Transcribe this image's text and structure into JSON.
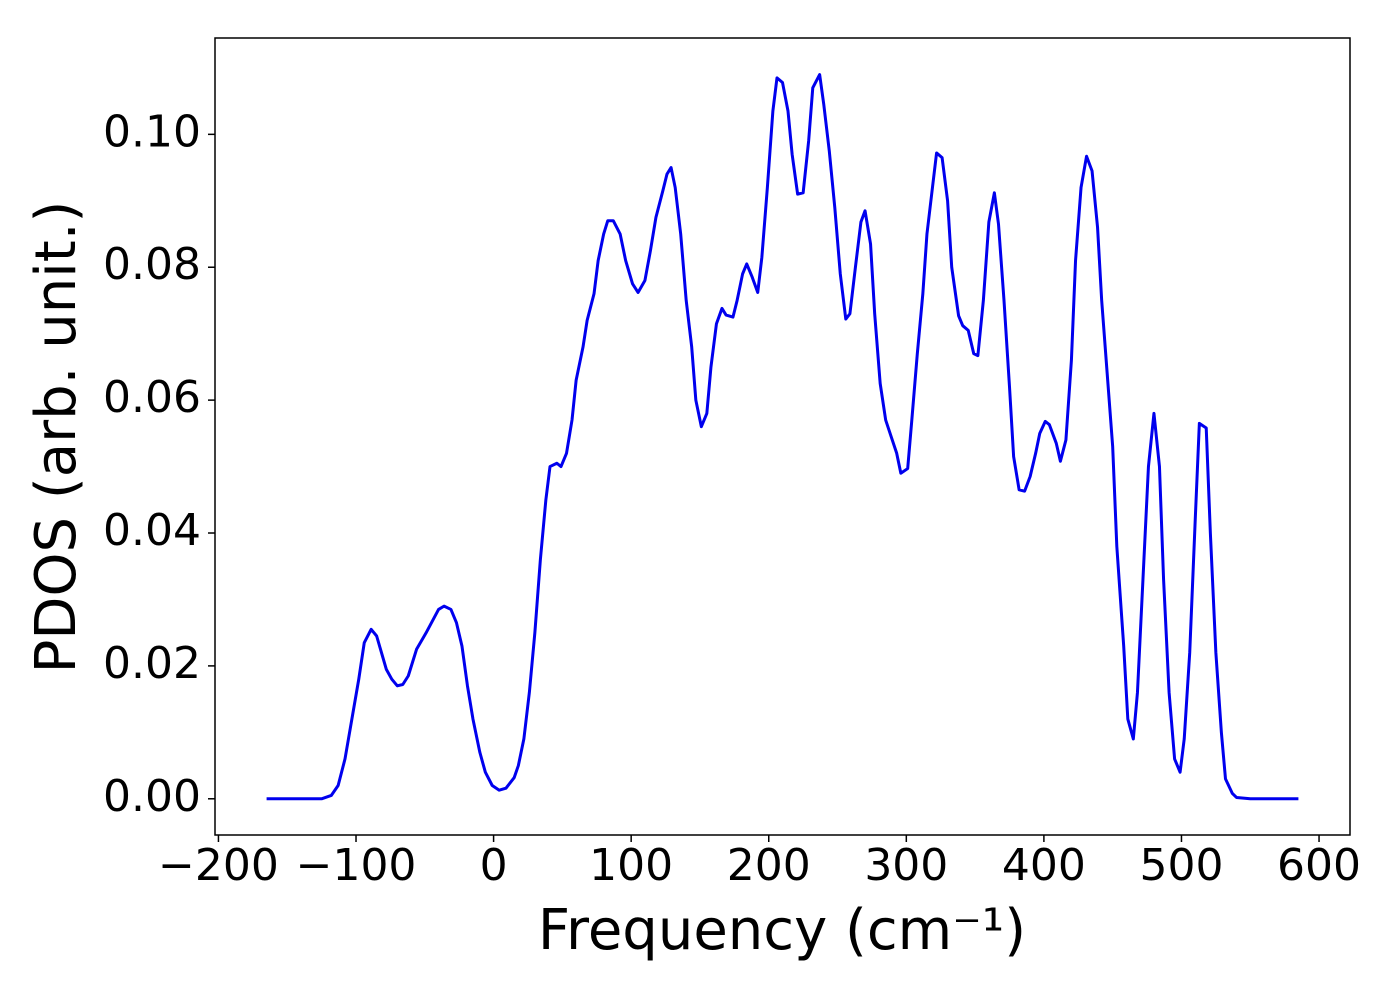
{
  "chart_data": {
    "type": "line",
    "xlabel": "Frequency (cm⁻¹)",
    "ylabel": "PDOS (arb. unit.)",
    "color": "#0000ee",
    "x": [
      -165,
      -150,
      -135,
      -125,
      -118,
      -113,
      -108,
      -103,
      -98,
      -94,
      -89,
      -85,
      -78,
      -74,
      -70,
      -66,
      -62,
      -56,
      -49,
      -40,
      -36,
      -31,
      -27,
      -23,
      -19,
      -15,
      -10,
      -6,
      -1,
      4,
      9,
      15,
      18,
      22,
      26,
      30,
      34,
      38,
      41,
      46,
      49,
      53,
      57,
      60,
      65,
      68,
      73,
      76,
      80,
      83,
      87,
      92,
      96,
      101,
      105,
      110,
      114,
      118,
      123,
      126,
      129,
      132,
      136,
      140,
      144,
      147,
      151,
      155,
      158,
      162,
      166,
      169,
      174,
      177,
      181,
      184,
      188,
      192,
      195,
      199,
      203,
      206,
      210,
      214,
      217,
      221,
      225,
      229,
      232,
      237,
      240,
      244,
      248,
      252,
      256,
      259,
      263,
      267,
      270,
      274,
      277,
      281,
      285,
      289,
      293,
      296,
      301,
      304,
      308,
      312,
      315,
      319,
      322,
      326,
      330,
      333,
      338,
      341,
      345,
      349,
      352,
      356,
      360,
      364,
      367,
      371,
      375,
      378,
      382,
      386,
      390,
      394,
      397,
      401,
      404,
      409,
      412,
      416,
      420,
      423,
      427,
      431,
      435,
      439,
      442,
      446,
      450,
      453,
      458,
      461,
      465,
      468,
      472,
      476,
      480,
      484,
      487,
      491,
      495,
      499,
      502,
      506,
      510,
      513,
      518,
      521,
      525,
      529,
      532,
      537,
      540,
      550,
      570,
      585
    ],
    "values": [
      0,
      0,
      0,
      0,
      0.0005,
      0.002,
      0.006,
      0.012,
      0.018,
      0.0235,
      0.0255,
      0.0245,
      0.0195,
      0.018,
      0.017,
      0.0172,
      0.0185,
      0.0225,
      0.025,
      0.0285,
      0.029,
      0.0285,
      0.0265,
      0.023,
      0.017,
      0.012,
      0.007,
      0.004,
      0.002,
      0.0013,
      0.0016,
      0.0032,
      0.005,
      0.009,
      0.016,
      0.025,
      0.036,
      0.045,
      0.05,
      0.0505,
      0.05,
      0.052,
      0.057,
      0.063,
      0.068,
      0.072,
      0.076,
      0.081,
      0.085,
      0.087,
      0.087,
      0.085,
      0.081,
      0.0775,
      0.0762,
      0.078,
      0.0825,
      0.0875,
      0.0915,
      0.094,
      0.095,
      0.092,
      0.085,
      0.075,
      0.068,
      0.06,
      0.056,
      0.058,
      0.065,
      0.0715,
      0.0738,
      0.0728,
      0.0725,
      0.075,
      0.079,
      0.0805,
      0.0785,
      0.0762,
      0.0815,
      0.092,
      0.1035,
      0.1085,
      0.1078,
      0.1035,
      0.097,
      0.091,
      0.0912,
      0.099,
      0.107,
      0.109,
      0.1045,
      0.0975,
      0.089,
      0.079,
      0.0722,
      0.073,
      0.08,
      0.0868,
      0.0885,
      0.0835,
      0.073,
      0.0625,
      0.057,
      0.0545,
      0.052,
      0.049,
      0.0497,
      0.057,
      0.067,
      0.076,
      0.085,
      0.092,
      0.0972,
      0.0965,
      0.09,
      0.08,
      0.0727,
      0.0712,
      0.0705,
      0.067,
      0.0667,
      0.075,
      0.0868,
      0.0912,
      0.0865,
      0.075,
      0.062,
      0.0515,
      0.0465,
      0.0463,
      0.0485,
      0.052,
      0.055,
      0.0568,
      0.0563,
      0.0535,
      0.0508,
      0.054,
      0.066,
      0.081,
      0.092,
      0.0967,
      0.0945,
      0.086,
      0.075,
      0.064,
      0.053,
      0.038,
      0.023,
      0.012,
      0.009,
      0.016,
      0.033,
      0.05,
      0.058,
      0.05,
      0.033,
      0.016,
      0.006,
      0.004,
      0.009,
      0.022,
      0.042,
      0.0565,
      0.0558,
      0.04,
      0.022,
      0.01,
      0.003,
      0.0008,
      0.0002,
      0,
      0,
      0
    ],
    "xlim": [
      -202.5,
      622.5
    ],
    "ylim": [
      -0.00545,
      0.1145
    ],
    "xticks": [
      {
        "value": -200,
        "label": "−200"
      },
      {
        "value": -100,
        "label": "−100"
      },
      0,
      100,
      200,
      300,
      400,
      500,
      600
    ],
    "yticks": [
      {
        "value": 0,
        "label": "0.00"
      },
      {
        "value": 0.02,
        "label": "0.02"
      },
      {
        "value": 0.04,
        "label": "0.04"
      },
      {
        "value": 0.06,
        "label": "0.06"
      },
      {
        "value": 0.08,
        "label": "0.08"
      },
      {
        "value": 0.1,
        "label": "0.10"
      }
    ],
    "grid": false
  }
}
